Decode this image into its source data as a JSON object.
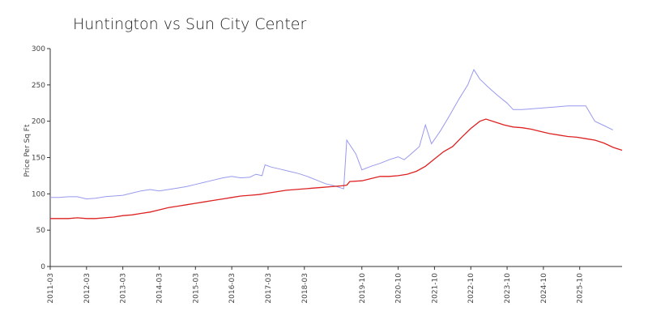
{
  "chart_data": {
    "type": "line",
    "title": "Huntington vs Sun City Center",
    "xlabel": "",
    "ylabel": "Price Per Sq Ft",
    "ylim": [
      0,
      300
    ],
    "yticks": [
      0,
      50,
      100,
      150,
      200,
      250,
      300
    ],
    "xticks": [
      "2011-03",
      "2012-03",
      "2013-03",
      "2014-03",
      "2015-03",
      "2016-03",
      "2017-03",
      "2018-03",
      "2019-10",
      "2020-10",
      "2021-10",
      "2022-10",
      "2023-10",
      "2024-10",
      "2025-10"
    ],
    "grid": false,
    "legend": "none",
    "series": [
      {
        "color": "#9999ee",
        "points": [
          [
            "2011-03",
            95
          ],
          [
            "2011-06",
            95
          ],
          [
            "2011-09",
            96
          ],
          [
            "2011-12",
            96
          ],
          [
            "2012-03",
            93
          ],
          [
            "2012-06",
            94
          ],
          [
            "2012-09",
            96
          ],
          [
            "2012-12",
            97
          ],
          [
            "2013-03",
            98
          ],
          [
            "2013-06",
            101
          ],
          [
            "2013-09",
            104
          ],
          [
            "2013-12",
            106
          ],
          [
            "2014-03",
            104
          ],
          [
            "2014-06",
            106
          ],
          [
            "2014-09",
            108
          ],
          [
            "2014-12",
            110
          ],
          [
            "2015-03",
            113
          ],
          [
            "2015-06",
            116
          ],
          [
            "2015-09",
            119
          ],
          [
            "2015-12",
            122
          ],
          [
            "2016-03",
            124
          ],
          [
            "2016-06",
            122
          ],
          [
            "2016-09",
            123
          ],
          [
            "2016-11",
            127
          ],
          [
            "2017-01",
            125
          ],
          [
            "2017-02",
            140
          ],
          [
            "2017-04",
            137
          ],
          [
            "2017-07",
            134
          ],
          [
            "2017-10",
            131
          ],
          [
            "2018-01",
            128
          ],
          [
            "2018-04",
            124
          ],
          [
            "2018-07",
            119
          ],
          [
            "2018-10",
            114
          ],
          [
            "2019-01",
            111
          ],
          [
            "2019-04",
            107
          ],
          [
            "2019-05",
            174
          ],
          [
            "2019-08",
            155
          ],
          [
            "2019-10",
            133
          ],
          [
            "2020-01",
            138
          ],
          [
            "2020-04",
            142
          ],
          [
            "2020-07",
            147
          ],
          [
            "2020-10",
            151
          ],
          [
            "2020-12",
            147
          ],
          [
            "2021-02",
            154
          ],
          [
            "2021-05",
            165
          ],
          [
            "2021-07",
            195
          ],
          [
            "2021-09",
            169
          ],
          [
            "2021-12",
            187
          ],
          [
            "2022-03",
            208
          ],
          [
            "2022-06",
            230
          ],
          [
            "2022-09",
            250
          ],
          [
            "2022-11",
            271
          ],
          [
            "2023-01",
            258
          ],
          [
            "2023-04",
            246
          ],
          [
            "2023-07",
            235
          ],
          [
            "2023-10",
            225
          ],
          [
            "2023-12",
            216
          ],
          [
            "2024-03",
            216
          ],
          [
            "2024-06",
            217
          ],
          [
            "2024-09",
            218
          ],
          [
            "2024-12",
            219
          ],
          [
            "2025-03",
            220
          ],
          [
            "2025-06",
            221
          ],
          [
            "2025-09",
            221
          ],
          [
            "2025-12",
            221
          ],
          [
            "2026-03",
            200
          ],
          [
            "2026-06",
            194
          ],
          [
            "2026-09",
            188
          ]
        ]
      },
      {
        "color": "#dd2222",
        "points": [
          [
            "2011-03",
            66
          ],
          [
            "2011-06",
            66
          ],
          [
            "2011-09",
            66
          ],
          [
            "2011-12",
            67
          ],
          [
            "2012-03",
            66
          ],
          [
            "2012-06",
            66
          ],
          [
            "2012-09",
            67
          ],
          [
            "2012-12",
            68
          ],
          [
            "2013-03",
            70
          ],
          [
            "2013-06",
            71
          ],
          [
            "2013-09",
            73
          ],
          [
            "2013-12",
            75
          ],
          [
            "2014-03",
            78
          ],
          [
            "2014-06",
            81
          ],
          [
            "2014-09",
            83
          ],
          [
            "2014-12",
            85
          ],
          [
            "2015-03",
            87
          ],
          [
            "2015-06",
            89
          ],
          [
            "2015-09",
            91
          ],
          [
            "2015-12",
            93
          ],
          [
            "2016-03",
            95
          ],
          [
            "2016-06",
            97
          ],
          [
            "2016-09",
            98
          ],
          [
            "2016-12",
            99
          ],
          [
            "2017-03",
            101
          ],
          [
            "2017-06",
            103
          ],
          [
            "2017-09",
            105
          ],
          [
            "2017-12",
            106
          ],
          [
            "2018-03",
            107
          ],
          [
            "2018-06",
            108
          ],
          [
            "2018-09",
            109
          ],
          [
            "2018-12",
            110
          ],
          [
            "2019-03",
            111
          ],
          [
            "2019-05",
            112
          ],
          [
            "2019-06",
            117
          ],
          [
            "2019-10",
            118
          ],
          [
            "2020-01",
            121
          ],
          [
            "2020-04",
            124
          ],
          [
            "2020-07",
            124
          ],
          [
            "2020-10",
            125
          ],
          [
            "2021-01",
            127
          ],
          [
            "2021-04",
            131
          ],
          [
            "2021-07",
            138
          ],
          [
            "2021-10",
            148
          ],
          [
            "2022-01",
            158
          ],
          [
            "2022-04",
            165
          ],
          [
            "2022-07",
            178
          ],
          [
            "2022-10",
            190
          ],
          [
            "2023-01",
            200
          ],
          [
            "2023-03",
            203
          ],
          [
            "2023-06",
            199
          ],
          [
            "2023-09",
            195
          ],
          [
            "2023-12",
            192
          ],
          [
            "2024-03",
            191
          ],
          [
            "2024-06",
            189
          ],
          [
            "2024-09",
            186
          ],
          [
            "2024-12",
            183
          ],
          [
            "2025-03",
            181
          ],
          [
            "2025-06",
            179
          ],
          [
            "2025-09",
            178
          ],
          [
            "2025-12",
            176
          ],
          [
            "2026-03",
            174
          ],
          [
            "2026-06",
            170
          ],
          [
            "2026-09",
            164
          ],
          [
            "2026-12",
            160
          ]
        ]
      }
    ]
  }
}
